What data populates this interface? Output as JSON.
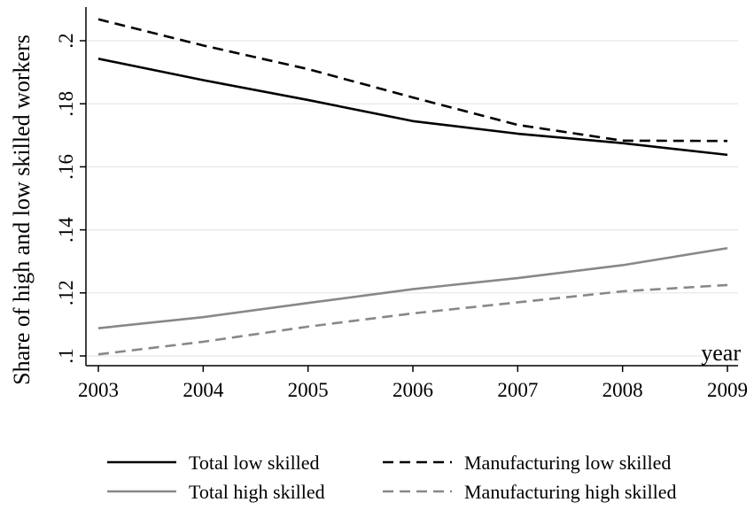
{
  "chart_data": {
    "type": "line",
    "title": "",
    "xlabel": "year",
    "ylabel": "Share of high and low skilled workers",
    "x": [
      2003,
      2004,
      2005,
      2006,
      2007,
      2008,
      2009
    ],
    "xlim": [
      2003,
      2009
    ],
    "ylim": [
      0.1,
      0.21
    ],
    "yticks": [
      0.1,
      0.12,
      0.14,
      0.16,
      0.18,
      0.2
    ],
    "ytick_labels": [
      ".1",
      ".12",
      ".14",
      ".16",
      ".18",
      ".2"
    ],
    "xtick_labels": [
      "2003",
      "2004",
      "2005",
      "2006",
      "2007",
      "2008",
      "2009"
    ],
    "grid": true,
    "legend_position": "bottom",
    "series": [
      {
        "name": "Total low skilled",
        "color": "#000000",
        "dash": "solid",
        "values": [
          0.1943,
          0.1875,
          0.1812,
          0.1745,
          0.1705,
          0.1675,
          0.1638
        ]
      },
      {
        "name": "Manufacturing low skilled",
        "color": "#000000",
        "dash": "dashed",
        "values": [
          0.2068,
          0.1985,
          0.191,
          0.182,
          0.1733,
          0.1683,
          0.1682
        ]
      },
      {
        "name": "Total high skilled",
        "color": "#888888",
        "dash": "solid",
        "values": [
          0.1088,
          0.1123,
          0.1168,
          0.1212,
          0.1247,
          0.1288,
          0.1342
        ]
      },
      {
        "name": "Manufacturing high skilled",
        "color": "#888888",
        "dash": "dashed",
        "values": [
          0.1005,
          0.1045,
          0.1093,
          0.1135,
          0.117,
          0.1205,
          0.1225
        ]
      }
    ]
  }
}
